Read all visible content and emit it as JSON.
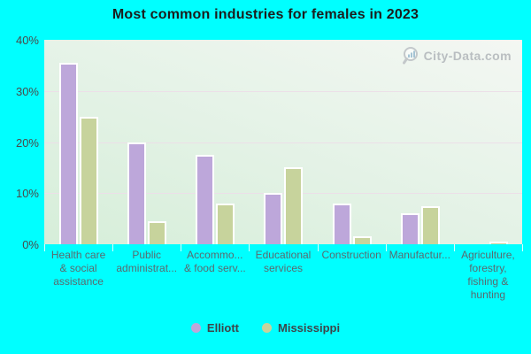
{
  "chart_data": {
    "type": "bar",
    "title": "Most common industries for females in 2023",
    "categories": [
      "Health care\n& social\nassistance",
      "Public\nadministrat...",
      "Accommo...\n& food serv...",
      "Educational\nservices",
      "Construction",
      "Manufactur...",
      "Agriculture,\nforestry,\nfishing &\nhunting"
    ],
    "series": [
      {
        "name": "Elliott",
        "color": "#bda7da",
        "values": [
          35.5,
          20,
          17.5,
          10,
          8,
          6,
          0
        ]
      },
      {
        "name": "Mississippi",
        "color": "#c7d39c",
        "values": [
          25,
          4.5,
          8,
          15,
          1.5,
          7.5,
          0.5
        ]
      }
    ],
    "ylabel": "",
    "xlabel": "",
    "ylim": [
      0,
      40
    ],
    "yticks": [
      "0%",
      "10%",
      "20%",
      "30%",
      "40%"
    ],
    "grid": true,
    "legend_position": "bottom",
    "watermark": "City-Data.com",
    "colors": {
      "background": "#00ffff",
      "plot_gradient_top": "#f4f7f3",
      "plot_gradient_bottom": "#d6eed9",
      "gridline": "#ecdfe8",
      "bar_border": "#ffffff",
      "title_text": "#1c1c1c",
      "axis_text": "#4a4a4a",
      "category_text": "#5a6a6f",
      "watermark_text": "#b4b9bc"
    }
  }
}
